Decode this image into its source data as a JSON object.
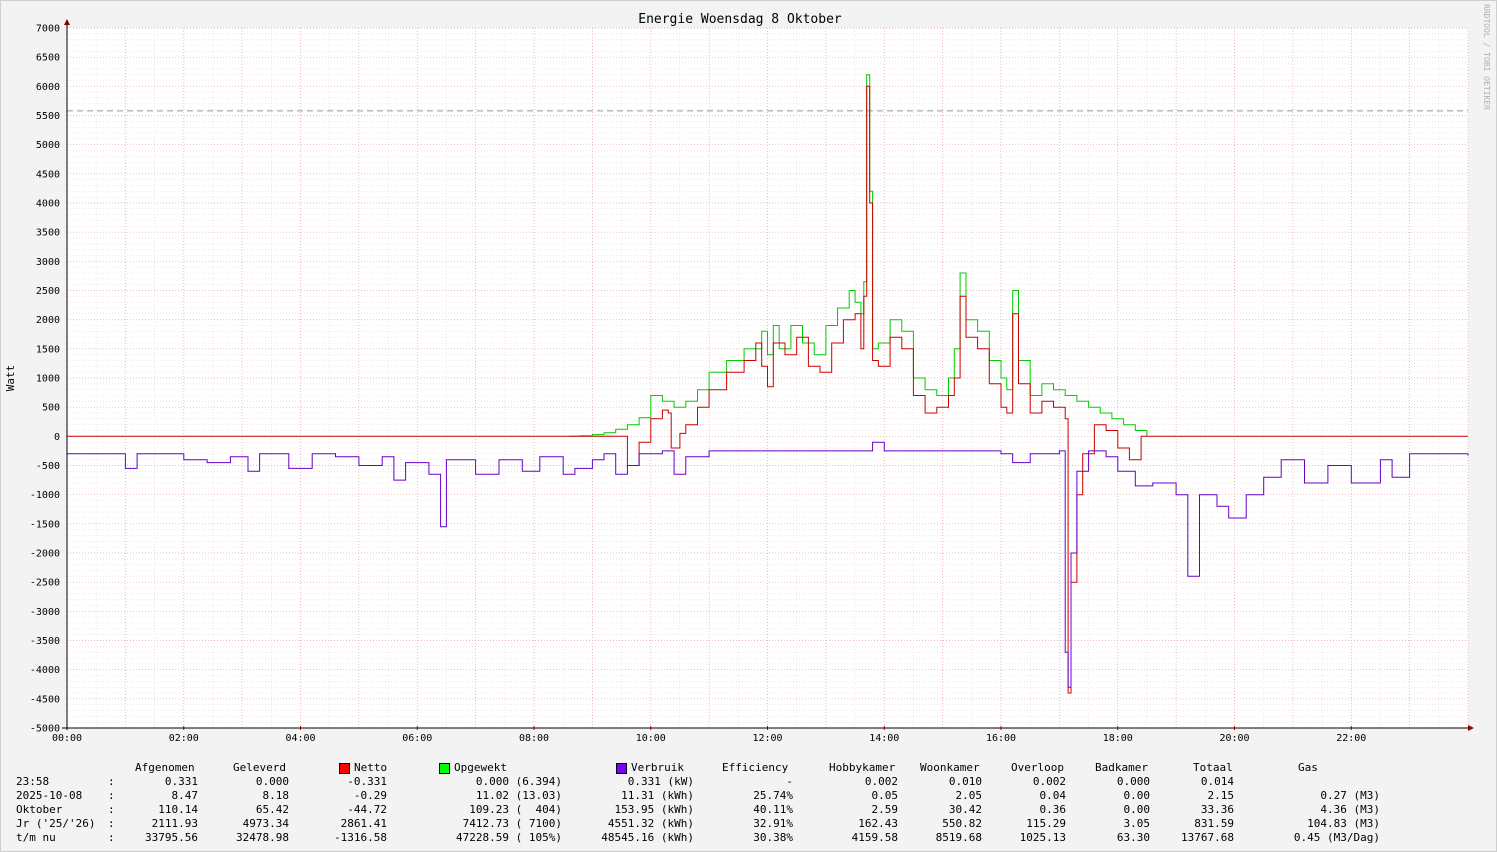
{
  "title": "Energie Woensdag  8 Oktober",
  "vertical_label": "Watt",
  "watermark": "RRDTOOL / TOBI OETIKER",
  "chart_data": {
    "type": "line",
    "title": "Energie Woensdag  8 Oktober",
    "ylabel": "Watt",
    "xlabel": "",
    "ylim": [
      -5000,
      7000
    ],
    "xlim_hours": [
      0,
      24
    ],
    "y_ticks": [
      "7000",
      "6500",
      "6000",
      "5500",
      "5000",
      "4500",
      "4000",
      "3500",
      "3000",
      "2500",
      "2000",
      "1500",
      "1000",
      "500",
      "0",
      "-500",
      "-1000",
      "-1500",
      "-2000",
      "-2500",
      "-3000",
      "-3500",
      "-4000",
      "-4500",
      "-5000"
    ],
    "x_ticks": [
      "00:00",
      "02:00",
      "04:00",
      "06:00",
      "08:00",
      "10:00",
      "12:00",
      "14:00",
      "16:00",
      "18:00",
      "20:00",
      "22:00"
    ],
    "grid": true,
    "hrule": 5580,
    "colors": {
      "netto": "#cc0000",
      "opgewekt": "#00cc00",
      "verbruik": "#6600cc",
      "hrule": "#999999"
    },
    "series": [
      {
        "name": "Opgewekt",
        "points": [
          [
            8.6,
            0
          ],
          [
            8.8,
            10
          ],
          [
            9.0,
            30
          ],
          [
            9.2,
            60
          ],
          [
            9.4,
            120
          ],
          [
            9.6,
            200
          ],
          [
            9.8,
            320
          ],
          [
            10.0,
            700
          ],
          [
            10.2,
            600
          ],
          [
            10.4,
            500
          ],
          [
            10.6,
            600
          ],
          [
            10.8,
            800
          ],
          [
            11.0,
            1100
          ],
          [
            11.3,
            1300
          ],
          [
            11.6,
            1500
          ],
          [
            11.9,
            1800
          ],
          [
            12.0,
            1400
          ],
          [
            12.1,
            1900
          ],
          [
            12.2,
            1500
          ],
          [
            12.4,
            1900
          ],
          [
            12.6,
            1600
          ],
          [
            12.8,
            1400
          ],
          [
            13.0,
            1900
          ],
          [
            13.2,
            2200
          ],
          [
            13.4,
            2500
          ],
          [
            13.5,
            2300
          ],
          [
            13.6,
            2100
          ],
          [
            13.65,
            2650
          ],
          [
            13.7,
            6200
          ],
          [
            13.75,
            4200
          ],
          [
            13.8,
            1500
          ],
          [
            13.9,
            1600
          ],
          [
            14.1,
            2000
          ],
          [
            14.3,
            1800
          ],
          [
            14.5,
            1000
          ],
          [
            14.7,
            800
          ],
          [
            14.9,
            700
          ],
          [
            15.1,
            1000
          ],
          [
            15.2,
            1500
          ],
          [
            15.3,
            2800
          ],
          [
            15.4,
            2000
          ],
          [
            15.6,
            1800
          ],
          [
            15.8,
            1300
          ],
          [
            16.0,
            1000
          ],
          [
            16.1,
            800
          ],
          [
            16.2,
            2500
          ],
          [
            16.3,
            1300
          ],
          [
            16.5,
            700
          ],
          [
            16.7,
            900
          ],
          [
            16.9,
            800
          ],
          [
            17.1,
            700
          ],
          [
            17.3,
            600
          ],
          [
            17.5,
            500
          ],
          [
            17.7,
            400
          ],
          [
            17.9,
            300
          ],
          [
            18.1,
            200
          ],
          [
            18.3,
            100
          ],
          [
            18.5,
            0
          ]
        ]
      },
      {
        "name": "Netto",
        "points": [
          [
            0,
            0
          ],
          [
            9.4,
            0
          ],
          [
            9.6,
            -500
          ],
          [
            9.8,
            -100
          ],
          [
            10.0,
            300
          ],
          [
            10.2,
            450
          ],
          [
            10.3,
            400
          ],
          [
            10.35,
            -200
          ],
          [
            10.5,
            50
          ],
          [
            10.6,
            200
          ],
          [
            10.8,
            500
          ],
          [
            11.0,
            800
          ],
          [
            11.3,
            1100
          ],
          [
            11.6,
            1300
          ],
          [
            11.8,
            1600
          ],
          [
            11.9,
            1200
          ],
          [
            12.0,
            850
          ],
          [
            12.1,
            1600
          ],
          [
            12.3,
            1400
          ],
          [
            12.5,
            1700
          ],
          [
            12.7,
            1200
          ],
          [
            12.9,
            1100
          ],
          [
            13.1,
            1600
          ],
          [
            13.3,
            2000
          ],
          [
            13.5,
            2100
          ],
          [
            13.6,
            1500
          ],
          [
            13.65,
            2400
          ],
          [
            13.7,
            6000
          ],
          [
            13.75,
            4000
          ],
          [
            13.8,
            1300
          ],
          [
            13.9,
            1200
          ],
          [
            14.1,
            1700
          ],
          [
            14.3,
            1500
          ],
          [
            14.5,
            700
          ],
          [
            14.7,
            400
          ],
          [
            14.9,
            500
          ],
          [
            15.1,
            700
          ],
          [
            15.2,
            1000
          ],
          [
            15.3,
            2400
          ],
          [
            15.4,
            1700
          ],
          [
            15.6,
            1500
          ],
          [
            15.8,
            900
          ],
          [
            16.0,
            500
          ],
          [
            16.1,
            400
          ],
          [
            16.2,
            2100
          ],
          [
            16.3,
            900
          ],
          [
            16.5,
            400
          ],
          [
            16.7,
            600
          ],
          [
            16.9,
            500
          ],
          [
            17.1,
            300
          ],
          [
            17.15,
            -4400
          ],
          [
            17.2,
            -2500
          ],
          [
            17.3,
            -1000
          ],
          [
            17.4,
            -300
          ],
          [
            17.6,
            200
          ],
          [
            17.8,
            100
          ],
          [
            18.0,
            -200
          ],
          [
            18.2,
            -400
          ],
          [
            18.4,
            0
          ],
          [
            24,
            0
          ]
        ]
      },
      {
        "name": "Verbruik",
        "points": [
          [
            0,
            -300
          ],
          [
            0.4,
            -300
          ],
          [
            1.0,
            -550
          ],
          [
            1.2,
            -300
          ],
          [
            2.0,
            -400
          ],
          [
            2.4,
            -450
          ],
          [
            2.8,
            -350
          ],
          [
            3.1,
            -600
          ],
          [
            3.3,
            -300
          ],
          [
            3.8,
            -550
          ],
          [
            4.2,
            -300
          ],
          [
            4.6,
            -350
          ],
          [
            5.0,
            -500
          ],
          [
            5.4,
            -350
          ],
          [
            5.6,
            -750
          ],
          [
            5.8,
            -450
          ],
          [
            6.2,
            -650
          ],
          [
            6.4,
            -1550
          ],
          [
            6.5,
            -400
          ],
          [
            7.0,
            -650
          ],
          [
            7.4,
            -400
          ],
          [
            7.8,
            -600
          ],
          [
            8.1,
            -350
          ],
          [
            8.5,
            -650
          ],
          [
            8.7,
            -550
          ],
          [
            9.0,
            -400
          ],
          [
            9.2,
            -300
          ],
          [
            9.4,
            -650
          ],
          [
            9.6,
            -500
          ],
          [
            9.8,
            -300
          ],
          [
            10.2,
            -250
          ],
          [
            10.4,
            -650
          ],
          [
            10.6,
            -350
          ],
          [
            11.0,
            -250
          ],
          [
            12.0,
            -250
          ],
          [
            13.0,
            -250
          ],
          [
            13.7,
            -250
          ],
          [
            13.8,
            -100
          ],
          [
            14.0,
            -250
          ],
          [
            15.0,
            -250
          ],
          [
            16.0,
            -300
          ],
          [
            16.2,
            -450
          ],
          [
            16.5,
            -300
          ],
          [
            17.0,
            -250
          ],
          [
            17.1,
            -3700
          ],
          [
            17.15,
            -4300
          ],
          [
            17.2,
            -2000
          ],
          [
            17.3,
            -600
          ],
          [
            17.5,
            -250
          ],
          [
            17.8,
            -350
          ],
          [
            18.0,
            -600
          ],
          [
            18.3,
            -850
          ],
          [
            18.6,
            -800
          ],
          [
            19.0,
            -1000
          ],
          [
            19.2,
            -2400
          ],
          [
            19.4,
            -1000
          ],
          [
            19.7,
            -1200
          ],
          [
            19.9,
            -1400
          ],
          [
            20.2,
            -1000
          ],
          [
            20.5,
            -700
          ],
          [
            20.8,
            -400
          ],
          [
            21.2,
            -800
          ],
          [
            21.6,
            -500
          ],
          [
            22.0,
            -800
          ],
          [
            22.5,
            -400
          ],
          [
            22.7,
            -700
          ],
          [
            23.0,
            -300
          ],
          [
            23.5,
            -300
          ],
          [
            24,
            -330
          ]
        ]
      }
    ]
  },
  "legend": {
    "columns": [
      "Afgenomen",
      "Geleverd",
      "Netto",
      "Opgewekt",
      "Verbruik",
      "Efficiency",
      "Hobbykamer",
      "Woonkamer",
      "Overloop",
      "Badkamer",
      "Totaal",
      "Gas"
    ]
  },
  "stats": {
    "rows": [
      {
        "label": "23:58",
        "sep": ":",
        "afgenomen": "0.331",
        "geleverd": "0.000",
        "netto": "-0.331",
        "opgewekt": "0.000 (6.394)",
        "verbruik": "0.331 (kW)",
        "efficiency": "-",
        "hobbykamer": "0.002",
        "woonkamer": "0.010",
        "overloop": "0.002",
        "badkamer": "0.000",
        "totaal": "0.014",
        "gas": ""
      },
      {
        "label": "2025-10-08",
        "sep": ":",
        "afgenomen": "8.47",
        "geleverd": "8.18",
        "netto": "-0.29",
        "opgewekt": "11.02 (13.03)",
        "verbruik": "11.31 (kWh)",
        "efficiency": "25.74%",
        "hobbykamer": "0.05",
        "woonkamer": "2.05",
        "overloop": "0.04",
        "badkamer": "0.00",
        "totaal": "2.15",
        "gas": "0.27 (M3)"
      },
      {
        "label": "Oktober",
        "sep": ":",
        "afgenomen": "110.14",
        "geleverd": "65.42",
        "netto": "-44.72",
        "opgewekt": "109.23 (  404)",
        "verbruik": "153.95 (kWh)",
        "efficiency": "40.11%",
        "hobbykamer": "2.59",
        "woonkamer": "30.42",
        "overloop": "0.36",
        "badkamer": "0.00",
        "totaal": "33.36",
        "gas": "4.36 (M3)"
      },
      {
        "label": "Jr ('25/'26)",
        "sep": ":",
        "afgenomen": "2111.93",
        "geleverd": "4973.34",
        "netto": "2861.41",
        "opgewekt": "7412.73 ( 7100)",
        "verbruik": "4551.32 (kWh)",
        "efficiency": "32.91%",
        "hobbykamer": "162.43",
        "woonkamer": "550.82",
        "overloop": "115.29",
        "badkamer": "3.05",
        "totaal": "831.59",
        "gas": "104.83 (M3)"
      },
      {
        "label": "t/m nu",
        "sep": ":",
        "afgenomen": "33795.56",
        "geleverd": "32478.98",
        "netto": "-1316.58",
        "opgewekt": "47228.59 ( 105%)",
        "verbruik": "48545.16 (kWh)",
        "efficiency": "30.38%",
        "hobbykamer": "4159.58",
        "woonkamer": "8519.68",
        "overloop": "1025.13",
        "badkamer": "63.30",
        "totaal": "13767.68",
        "gas": "0.45 (M3/Dag)"
      }
    ]
  }
}
